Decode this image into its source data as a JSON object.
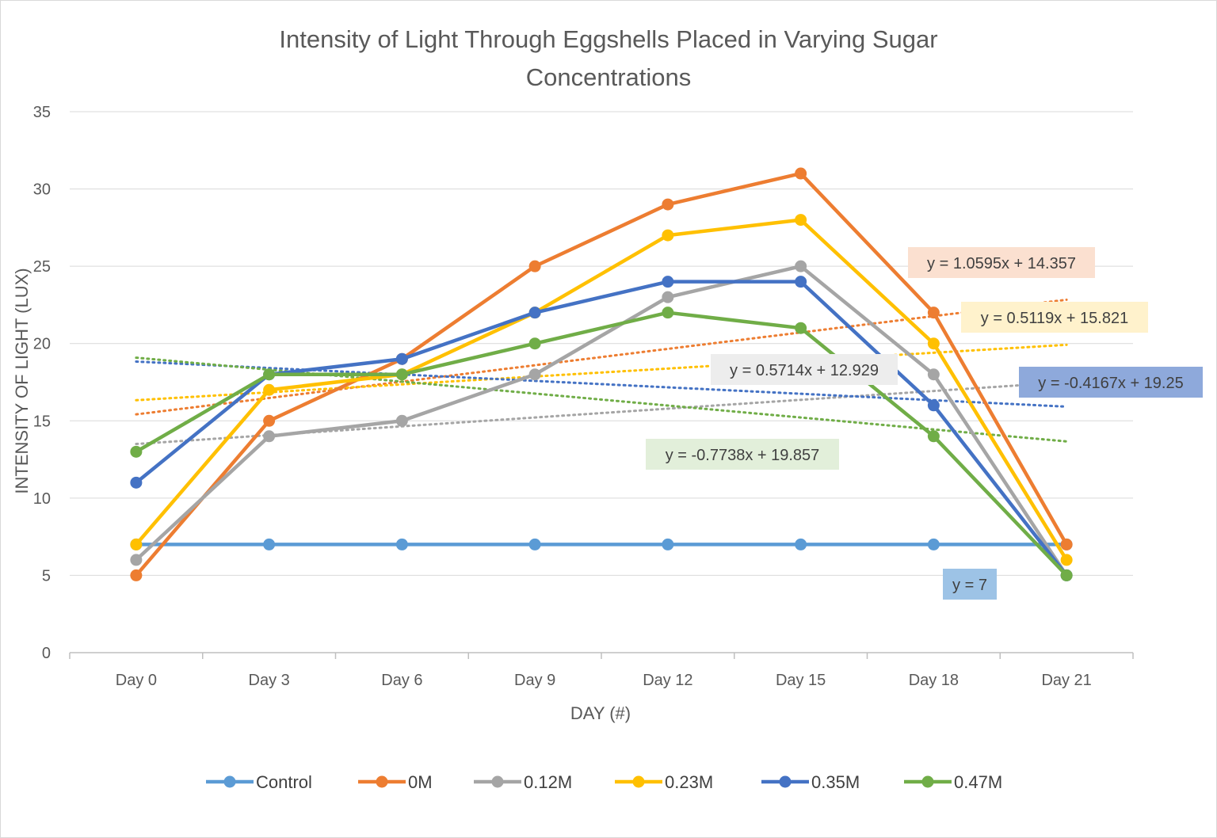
{
  "chart_data": {
    "type": "line",
    "title": "Intensity of Light Through Eggshells Placed in Varying Sugar Concentrations",
    "title_lines": [
      "Intensity of Light Through Eggshells Placed in Varying Sugar",
      "Concentrations"
    ],
    "xlabel": "DAY (#)",
    "ylabel": "INTENSITY OF LIGHT (LUX)",
    "categories": [
      "Day 0",
      "Day 3",
      "Day 6",
      "Day 9",
      "Day 12",
      "Day 15",
      "Day 18",
      "Day 21"
    ],
    "ylim": [
      0,
      35
    ],
    "yticks": [
      0,
      5,
      10,
      15,
      20,
      25,
      30,
      35
    ],
    "grid": true,
    "legend_position": "bottom",
    "series": [
      {
        "name": "Control",
        "color": "#5B9BD5",
        "values": [
          7,
          7,
          7,
          7,
          7,
          7,
          7,
          7
        ],
        "trendline": {
          "slope": 0,
          "intercept": 7,
          "equation": "y = 7",
          "label_bg": "#9DC3E6"
        }
      },
      {
        "name": "0M",
        "color": "#ED7D31",
        "values": [
          5,
          15,
          19,
          25,
          29,
          31,
          22,
          7
        ],
        "trendline": {
          "slope": 1.0595,
          "intercept": 14.357,
          "equation": "y = 1.0595x + 14.357",
          "label_bg": "#FBE0D0"
        }
      },
      {
        "name": "0.12M",
        "color": "#A5A5A5",
        "values": [
          6,
          14,
          15,
          18,
          23,
          25,
          18,
          5
        ],
        "trendline": {
          "slope": 0.5714,
          "intercept": 12.929,
          "equation": "y = 0.5714x + 12.929",
          "label_bg": "#EDEDED"
        }
      },
      {
        "name": "0.23M",
        "color": "#FFC000",
        "values": [
          7,
          17,
          18,
          22,
          27,
          28,
          20,
          6
        ],
        "trendline": {
          "slope": 0.5119,
          "intercept": 15.821,
          "equation": "y = 0.5119x + 15.821",
          "label_bg": "#FFF2CC"
        }
      },
      {
        "name": "0.35M",
        "color": "#4472C4",
        "values": [
          11,
          18,
          19,
          22,
          24,
          24,
          16,
          5
        ],
        "trendline": {
          "slope": -0.4167,
          "intercept": 19.25,
          "equation": "y = -0.4167x + 19.25",
          "label_bg": "#8EA9DB"
        }
      },
      {
        "name": "0.47M",
        "color": "#70AD47",
        "values": [
          13,
          18,
          18,
          20,
          22,
          21,
          14,
          5
        ],
        "trendline": {
          "slope": -0.7738,
          "intercept": 19.857,
          "equation": "y = -0.7738x + 19.857",
          "label_bg": "#E2EFDA"
        }
      }
    ]
  }
}
